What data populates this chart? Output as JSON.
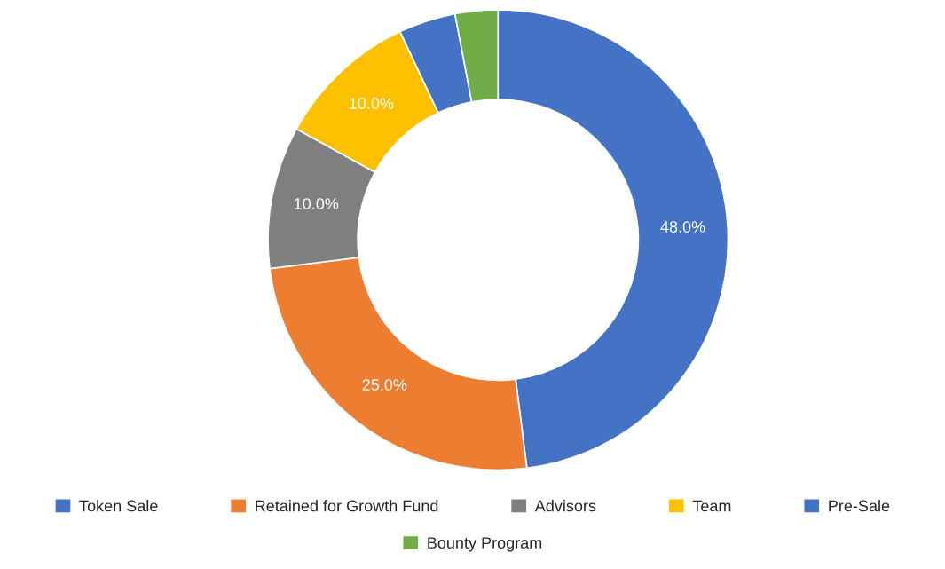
{
  "chart_data": {
    "type": "donut",
    "categories": [
      "Token Sale",
      "Retained for Growth Fund",
      "Advisors",
      "Team",
      "Pre-Sale",
      "Bounty Program"
    ],
    "values": [
      48,
      25,
      10,
      10,
      4,
      3
    ],
    "value_labels": [
      "48.0%",
      "25.0%",
      "10.0%",
      "10.0%",
      null,
      null
    ],
    "colors": [
      "#4472c4",
      "#ed7d31",
      "#7f7f7f",
      "#ffc000",
      "#4472c4",
      "#70ad47"
    ],
    "legend": "bottom"
  }
}
